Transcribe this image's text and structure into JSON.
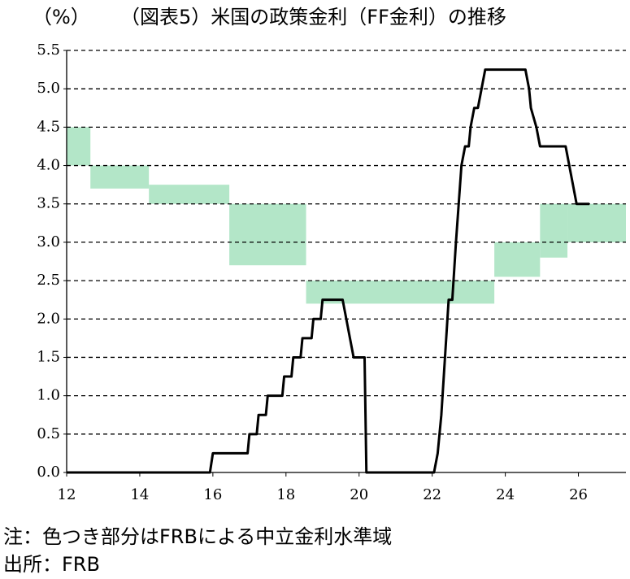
{
  "chart_data": {
    "type": "line",
    "title": "（図表5）米国の政策金利（FF金利）の推移",
    "y_label": "（%）",
    "notes": [
      "注：色つき部分はFRBによる中立金利水準域",
      "出所：FRB"
    ],
    "x": [
      12,
      15.92,
      16.0,
      16.95,
      17.0,
      17.2,
      17.25,
      17.45,
      17.5,
      17.9,
      17.95,
      18.15,
      18.2,
      18.4,
      18.45,
      18.7,
      18.75,
      18.95,
      19.0,
      19.55,
      19.65,
      19.75,
      19.85,
      20.15,
      20.2,
      22.05,
      22.15,
      22.25,
      22.35,
      22.45,
      22.55,
      22.65,
      22.8,
      22.9,
      23.0,
      23.05,
      23.15,
      23.25,
      23.35,
      23.45,
      24.55,
      24.65,
      24.7,
      24.85,
      24.95,
      25.65,
      25.75,
      25.85,
      25.95,
      26.3
    ],
    "series": [
      {
        "color": "#000000",
        "values": [
          0,
          0,
          0.25,
          0.25,
          0.5,
          0.5,
          0.75,
          0.75,
          1.0,
          1.0,
          1.25,
          1.25,
          1.5,
          1.5,
          1.75,
          1.75,
          2.0,
          2.0,
          2.25,
          2.25,
          2.0,
          1.75,
          1.5,
          1.5,
          0,
          0,
          0.25,
          0.75,
          1.5,
          2.25,
          2.25,
          3.0,
          4.0,
          4.25,
          4.25,
          4.5,
          4.75,
          4.75,
          5.0,
          5.25,
          5.25,
          5.0,
          4.75,
          4.5,
          4.25,
          4.25,
          4.0,
          3.75,
          3.5,
          3.5
        ]
      }
    ],
    "bands": {
      "color": "#b3e6c8",
      "x0": [
        12.0,
        12.65,
        14.25,
        16.45,
        18.55,
        23.7,
        24.95,
        25.7
      ],
      "x1": [
        12.65,
        14.25,
        16.45,
        18.55,
        23.7,
        24.95,
        25.7,
        27.3
      ],
      "low": [
        4.0,
        3.7,
        3.5,
        2.7,
        2.2,
        2.55,
        2.8,
        3.0
      ],
      "high": [
        4.5,
        4.0,
        3.75,
        3.5,
        2.5,
        3.0,
        3.5,
        3.5
      ]
    },
    "xlim": [
      12,
      27.3
    ],
    "xticks": [
      12,
      14,
      16,
      18,
      20,
      22,
      24,
      26
    ],
    "ylim": [
      0,
      5.5
    ],
    "yticks": [
      {
        "value": 0,
        "label": "0.0"
      },
      {
        "value": 0.5,
        "label": "0.5"
      },
      {
        "value": 1,
        "label": "1.0"
      },
      {
        "value": 1.5,
        "label": "1.5"
      },
      {
        "value": 2,
        "label": "2.0"
      },
      {
        "value": 2.5,
        "label": "2.5"
      },
      {
        "value": 3,
        "label": "3.0"
      },
      {
        "value": 3.5,
        "label": "3.5"
      },
      {
        "value": 4,
        "label": "4.0"
      },
      {
        "value": 4.5,
        "label": "4.5"
      },
      {
        "value": 5,
        "label": "5.0"
      },
      {
        "value": 5.5,
        "label": "5.5"
      }
    ],
    "grid": true
  }
}
